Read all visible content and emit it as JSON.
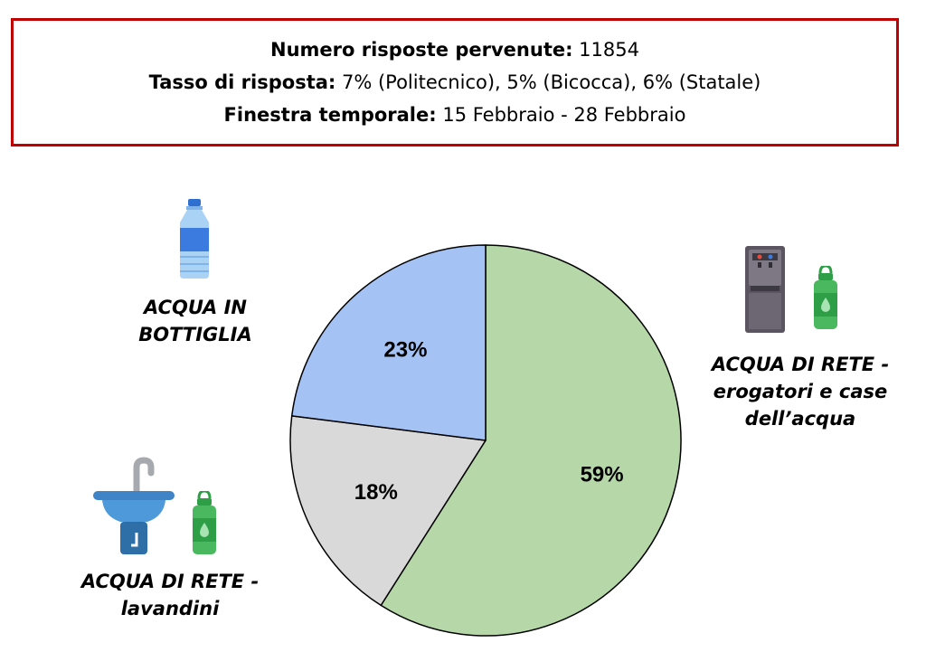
{
  "info_box": {
    "line1_label": "Numero risposte pervenute:",
    "line1_value": " 11854",
    "line2_label": "Tasso di risposta:",
    "line2_value": " 7% (Politecnico), 5% (Bicocca), 6% (Statale)",
    "line3_label": "Finestra temporale:",
    "line3_value": " 15 Febbraio - 28 Febbraio"
  },
  "labels": {
    "bottled_line1": "ACQUA IN",
    "bottled_line2": "BOTTIGLIA",
    "dispensers_line1": "ACQUA DI RETE -",
    "dispensers_line2": "erogatori e case",
    "dispensers_line3": "dell’acqua",
    "sinks_line1": "ACQUA DI RETE -",
    "sinks_line2": "lavandini"
  },
  "icons": {
    "bottled": "plastic-bottle-icon",
    "dispenser": "water-dispenser-icon",
    "sink": "sink-tap-icon",
    "flask": "reusable-bottle-icon"
  },
  "chart_data": {
    "type": "pie",
    "start_angle_deg": 0,
    "direction": "clockwise",
    "slices": [
      {
        "label": "ACQUA DI RETE - erogatori e case dell’acqua",
        "value": 59,
        "display": "59%",
        "color": "#b6d7a8"
      },
      {
        "label": "ACQUA DI RETE - lavandini",
        "value": 18,
        "display": "18%",
        "color": "#d9d9d9"
      },
      {
        "label": "ACQUA IN BOTTIGLIA",
        "value": 23,
        "display": "23%",
        "color": "#a4c2f4"
      }
    ],
    "stroke_color": "#000000"
  }
}
